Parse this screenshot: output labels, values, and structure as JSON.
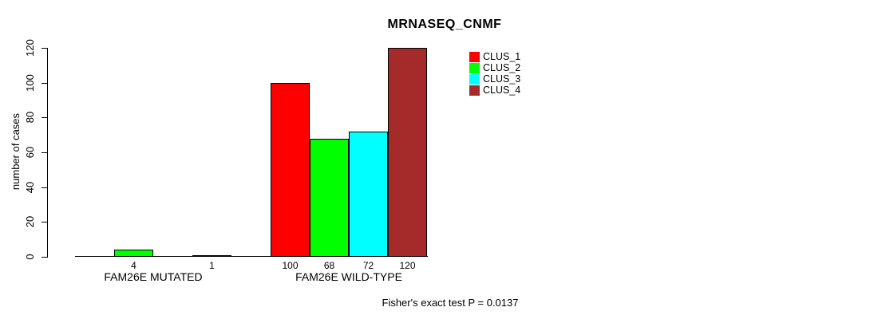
{
  "chart_data": {
    "type": "bar",
    "title": "MRNASEQ_CNMF",
    "ylabel": "number of cases",
    "ylim": [
      0,
      120
    ],
    "yticks": [
      0,
      20,
      40,
      60,
      80,
      100,
      120
    ],
    "grid": false,
    "legend_position": "top-right",
    "clusters": [
      {
        "name": "CLUS_1",
        "color": "#FF0000"
      },
      {
        "name": "CLUS_2",
        "color": "#00FF00"
      },
      {
        "name": "CLUS_3",
        "color": "#00FFFF"
      },
      {
        "name": "CLUS_4",
        "color": "#A52A2A"
      }
    ],
    "groups": [
      {
        "label": "FAM26E MUTATED",
        "values": [
          0,
          4,
          0,
          1
        ]
      },
      {
        "label": "FAM26E WILD-TYPE",
        "values": [
          100,
          68,
          72,
          120
        ]
      }
    ],
    "annotation": "Fisher's exact test P = 0.0137"
  }
}
